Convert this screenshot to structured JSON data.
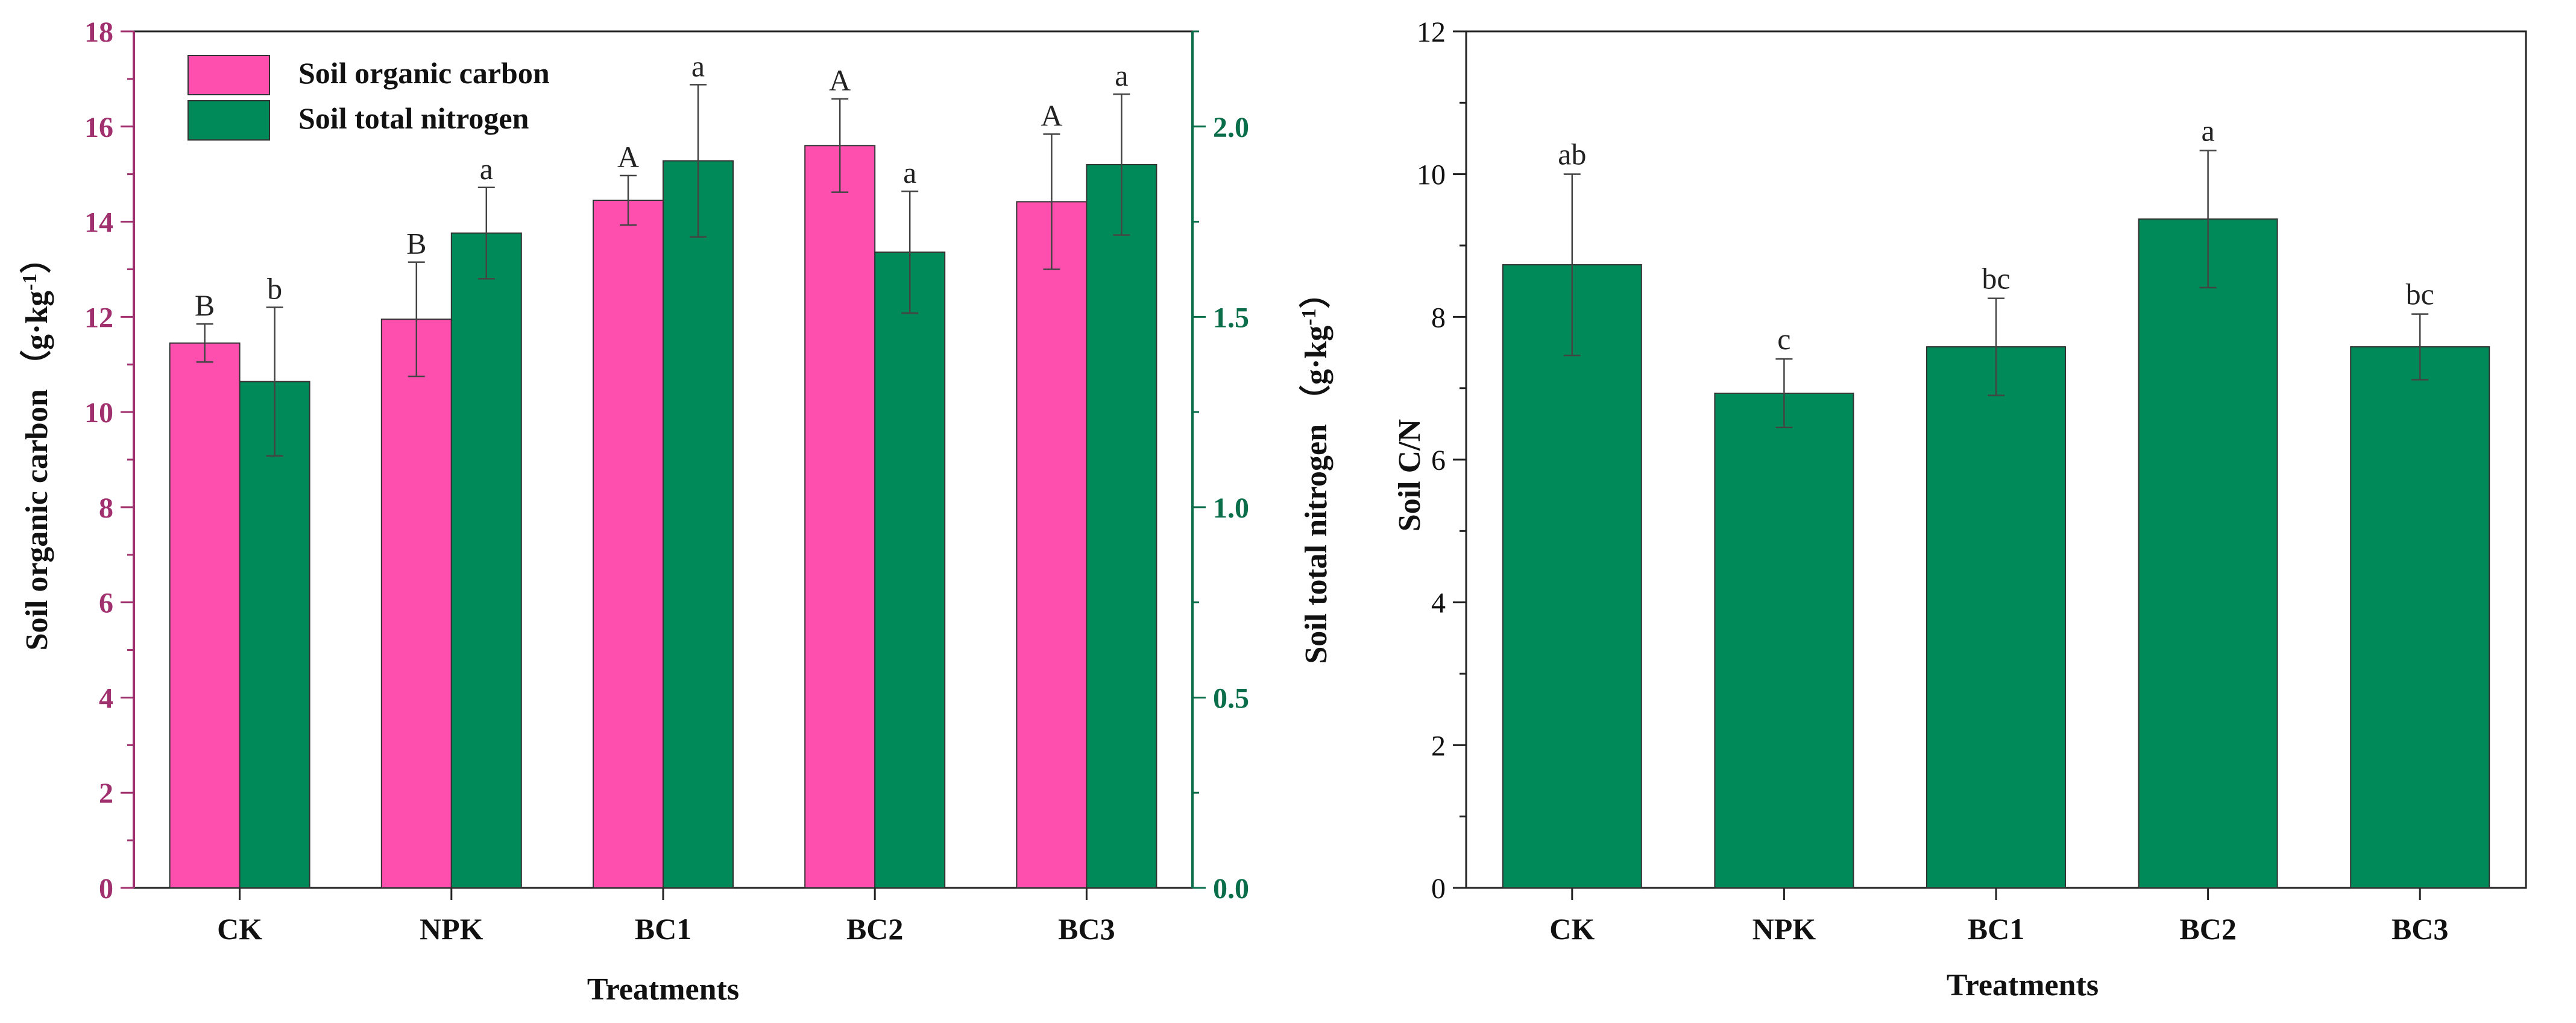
{
  "charts": [
    {
      "categories": [
        "CK",
        "NPK",
        "BC1",
        "BC2",
        "BC3"
      ],
      "xlabel": "Treatments",
      "left_axis": {
        "label": "Soil organic carbon （g·kg",
        "unit_sup": "-1",
        "unit_close": "）",
        "ticks": [
          "0",
          "2",
          "4",
          "6",
          "8",
          "10",
          "12",
          "14",
          "16",
          "18"
        ],
        "color": "#a0306e"
      },
      "right_axis": {
        "label": "Soil total nitrogen （g·kg",
        "unit_sup": "-1",
        "unit_close": "）",
        "ticks": [
          "0.0",
          "0.5",
          "1.0",
          "1.5",
          "2.0"
        ],
        "color": "#0a6e4a"
      },
      "legend": {
        "items": [
          {
            "label": "Soil organic carbon",
            "color": "#ff4fae"
          },
          {
            "label": "Soil total nitrogen",
            "color": "#008a5a"
          }
        ]
      },
      "letters": {
        "soc": [
          "B",
          "B",
          "A",
          "A",
          "A"
        ],
        "stn": [
          "b",
          "a",
          "a",
          "a",
          "a"
        ]
      }
    },
    {
      "categories": [
        "CK",
        "NPK",
        "BC1",
        "BC2",
        "BC3"
      ],
      "xlabel": "Treatments",
      "ylabel": "Soil C/N",
      "ticks": [
        "0",
        "2",
        "4",
        "6",
        "8",
        "10",
        "12"
      ],
      "letters": [
        "ab",
        "c",
        "bc",
        "a",
        "bc"
      ]
    }
  ],
  "chart_data": [
    {
      "type": "bar",
      "categories": [
        "CK",
        "NPK",
        "BC1",
        "BC2",
        "BC3"
      ],
      "xlabel": "Treatments",
      "ylabel": "Soil organic carbon （g·kg-1）",
      "y2label": "Soil total nitrogen （g·kg-1）",
      "ylim": [
        0,
        18
      ],
      "y2lim": [
        0,
        2.25
      ],
      "legend_position": "top-left",
      "series": [
        {
          "name": "Soil organic carbon",
          "axis": "left",
          "color": "#ff4fae",
          "values": [
            11.45,
            11.95,
            14.45,
            15.6,
            14.42
          ],
          "errors": [
            0.4,
            1.2,
            0.52,
            0.98,
            1.42
          ]
        },
        {
          "name": "Soil total nitrogen",
          "axis": "right",
          "color": "#008a5a",
          "values": [
            1.33,
            1.72,
            1.91,
            1.67,
            1.9
          ],
          "errors": [
            0.195,
            0.12,
            0.2,
            0.16,
            0.185
          ]
        }
      ]
    },
    {
      "type": "bar",
      "categories": [
        "CK",
        "NPK",
        "BC1",
        "BC2",
        "BC3"
      ],
      "xlabel": "Treatments",
      "ylabel": "Soil C/N",
      "ylim": [
        0,
        12
      ],
      "series": [
        {
          "color": "#008a5a",
          "values": [
            8.73,
            6.93,
            7.58,
            9.37,
            7.58
          ],
          "errors": [
            1.27,
            0.48,
            0.68,
            0.96,
            0.46
          ]
        }
      ]
    }
  ]
}
